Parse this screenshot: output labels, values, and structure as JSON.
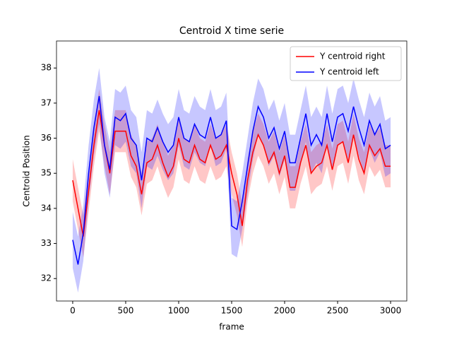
{
  "chart_data": {
    "type": "line",
    "title": "Centroid X time serie",
    "x_label": "frame",
    "y_label": "Centroid Position",
    "x": [
      0,
      50,
      100,
      150,
      200,
      250,
      300,
      350,
      400,
      450,
      500,
      550,
      600,
      650,
      700,
      750,
      800,
      850,
      900,
      950,
      1000,
      1050,
      1100,
      1150,
      1200,
      1250,
      1300,
      1350,
      1400,
      1450,
      1500,
      1550,
      1600,
      1650,
      1700,
      1750,
      1800,
      1850,
      1900,
      1950,
      2000,
      2050,
      2100,
      2150,
      2200,
      2250,
      2300,
      2350,
      2400,
      2450,
      2500,
      2550,
      2600,
      2650,
      2700,
      2750,
      2800,
      2850,
      2900,
      2950,
      3000
    ],
    "series": [
      {
        "name": "Y centroid right",
        "color": "#ff0000",
        "error": 0.6,
        "values": [
          34.8,
          34.0,
          33.2,
          34.5,
          35.8,
          36.8,
          35.8,
          35.0,
          36.2,
          36.2,
          36.2,
          35.5,
          35.2,
          34.4,
          35.3,
          35.4,
          35.8,
          35.3,
          34.9,
          35.2,
          36.0,
          35.4,
          35.3,
          35.8,
          35.4,
          35.3,
          35.8,
          35.4,
          35.5,
          35.8,
          35.0,
          34.4,
          33.5,
          34.8,
          35.6,
          36.1,
          35.8,
          35.3,
          35.6,
          35.0,
          35.5,
          34.6,
          34.6,
          35.3,
          35.8,
          35.0,
          35.2,
          35.3,
          35.8,
          35.1,
          35.8,
          35.9,
          35.3,
          36.1,
          35.4,
          35.0,
          35.8,
          35.5,
          35.7,
          35.2,
          35.2
        ]
      },
      {
        "name": "Y centroid left",
        "color": "#0000ff",
        "error": 0.8,
        "values": [
          33.1,
          32.4,
          33.3,
          35.0,
          36.3,
          37.2,
          35.8,
          35.1,
          36.6,
          36.5,
          36.7,
          36.0,
          35.8,
          34.8,
          36.0,
          35.9,
          36.3,
          35.9,
          35.6,
          35.8,
          36.6,
          36.0,
          35.9,
          36.4,
          36.1,
          36.0,
          36.6,
          36.0,
          36.1,
          36.5,
          33.5,
          33.4,
          34.2,
          35.2,
          36.2,
          36.9,
          36.6,
          36.0,
          36.3,
          35.7,
          36.2,
          35.3,
          35.3,
          36.0,
          36.7,
          35.8,
          36.1,
          35.8,
          36.7,
          35.9,
          36.6,
          36.7,
          36.2,
          36.9,
          36.3,
          35.8,
          36.5,
          36.1,
          36.4,
          35.7,
          35.8
        ]
      }
    ],
    "xlim": [
      -153,
      3153
    ],
    "ylim": [
      31.36,
      38.77
    ],
    "xticks": [
      0,
      500,
      1000,
      1500,
      2000,
      2500,
      3000
    ],
    "yticks": [
      32,
      33,
      34,
      35,
      36,
      37,
      38
    ],
    "legend": "upper right"
  }
}
